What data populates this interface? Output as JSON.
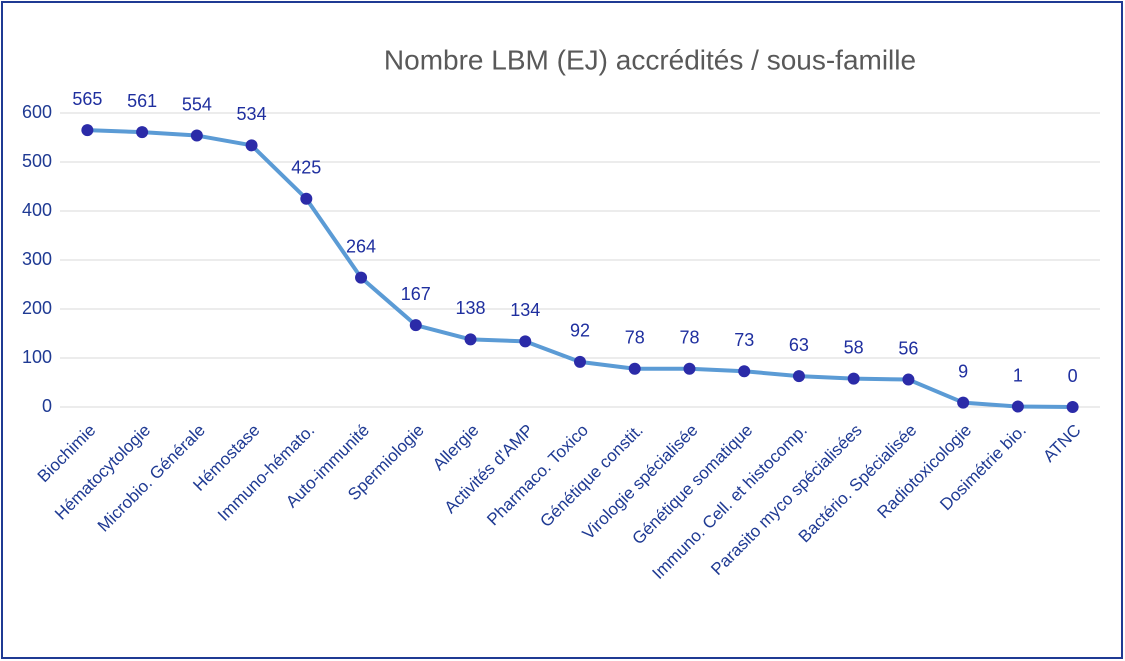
{
  "chart_data": {
    "type": "line",
    "title": "Nombre LBM (EJ) accrédités / sous-famille",
    "categories": [
      "Biochimie",
      "Hématocytologie",
      "Microbio. Générale",
      "Hémostase",
      "Immuno-hémato.",
      "Auto-immunité",
      "Spermiologie",
      "Allergie",
      "Activités d'AMP",
      "Pharmaco. Toxico",
      "Génétique constit.",
      "Virologie spécialisée",
      "Génétique somatique",
      "Immuno. Cell. et histocomp.",
      "Parasito myco spécialisées",
      "Bactério. Spécialisée",
      "Radiotoxicologie",
      "Dosimétrie bio.",
      "ATNC"
    ],
    "series": [
      {
        "name": "Nombre LBM",
        "color": "#5b9bd5",
        "marker_color": "#2b2ba8",
        "values": [
          565,
          561,
          554,
          534,
          425,
          264,
          167,
          138,
          134,
          92,
          78,
          78,
          73,
          63,
          58,
          56,
          9,
          1,
          0
        ]
      }
    ],
    "ylim": [
      0,
      600
    ],
    "yticks": [
      0,
      100,
      200,
      300,
      400,
      500,
      600
    ],
    "grid": true
  }
}
